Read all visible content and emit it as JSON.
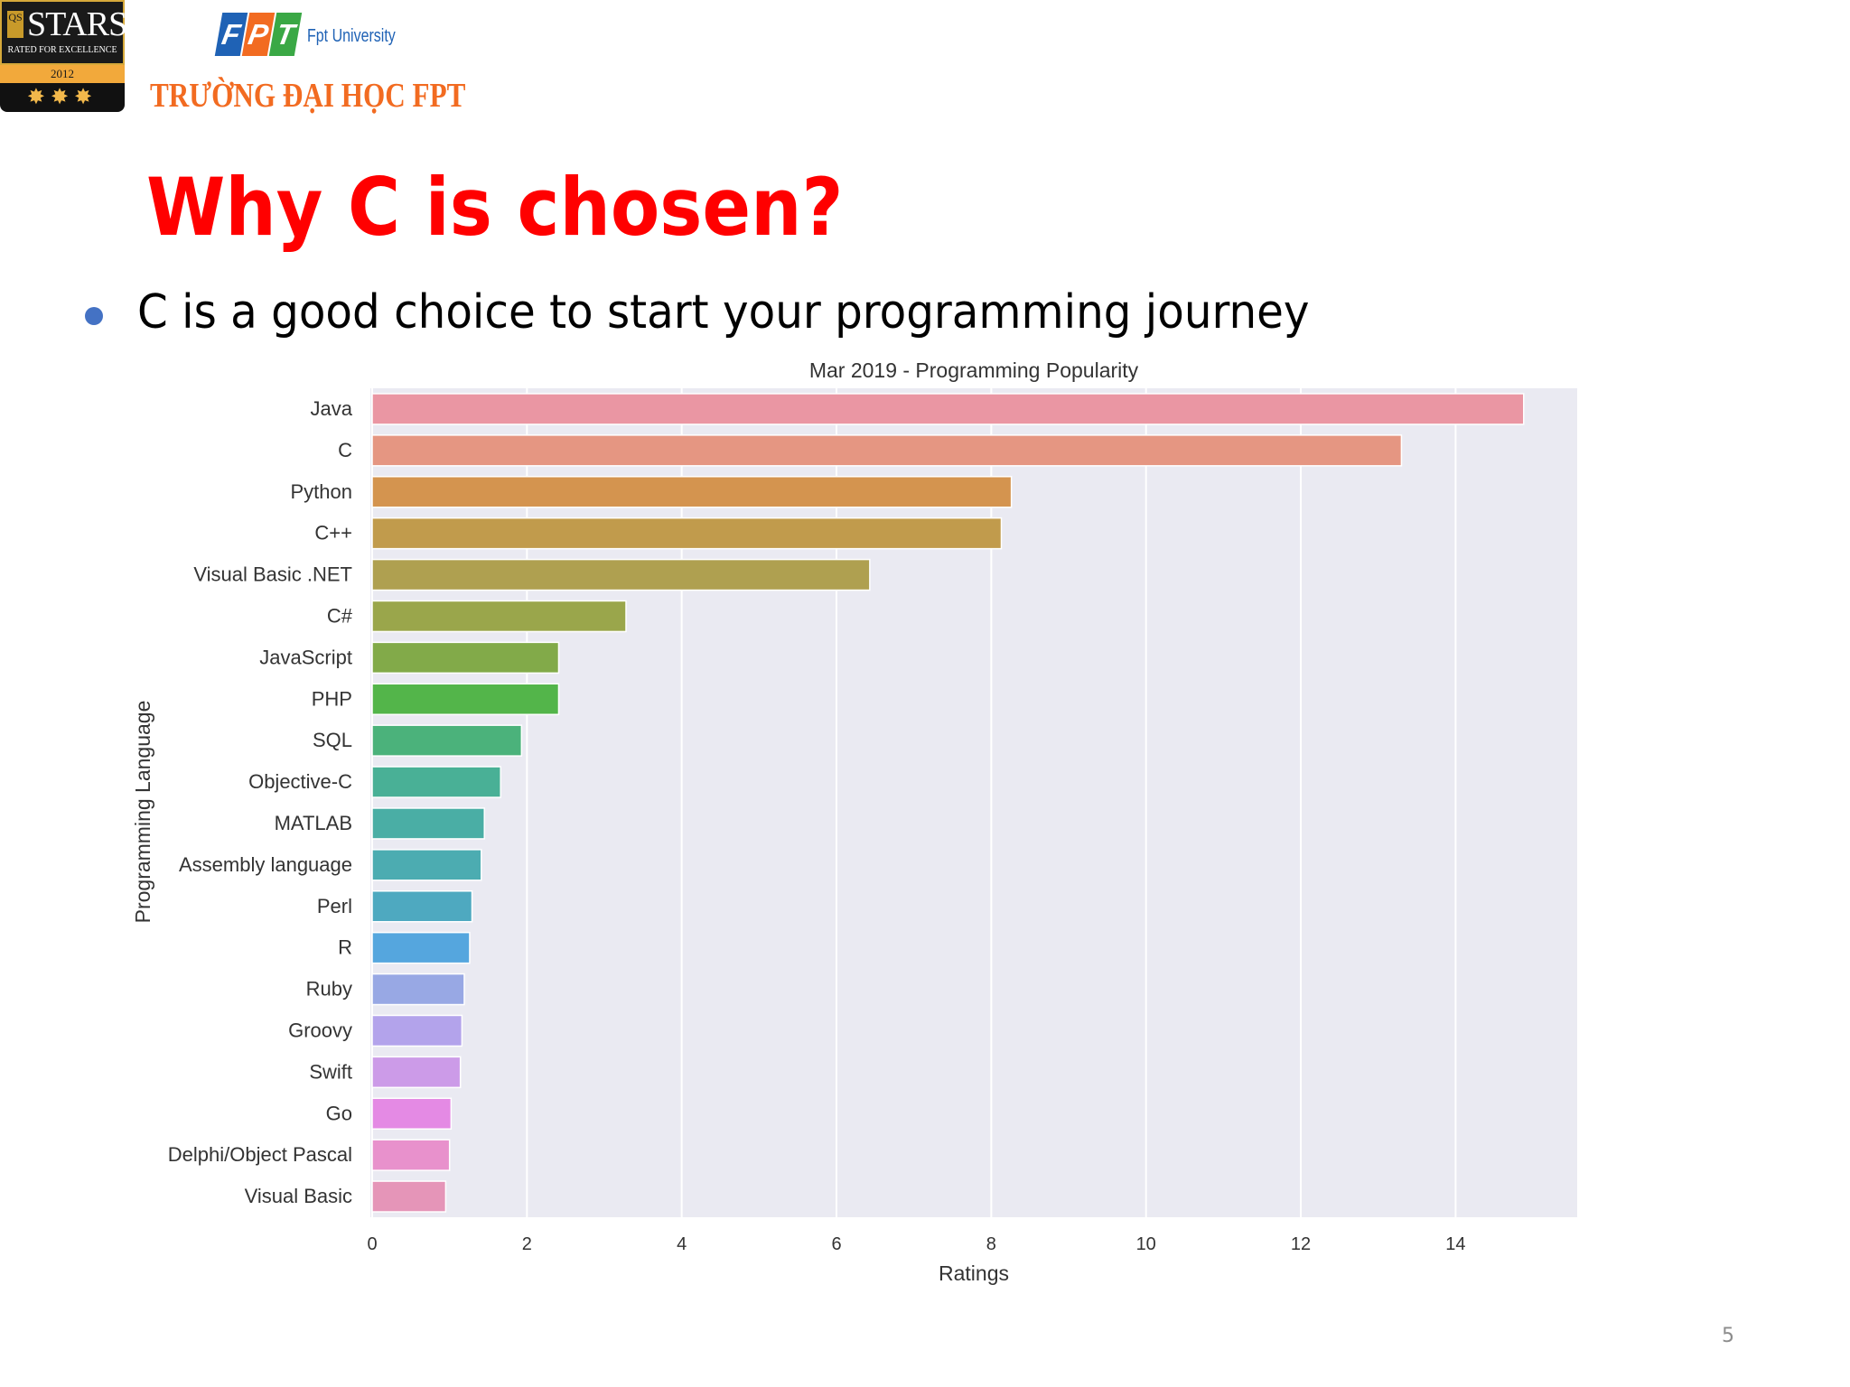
{
  "header": {
    "qs_badge": {
      "box_text": "QS",
      "stars_text": "STARS",
      "rated_text": "RATED FOR EXCELLENCE",
      "year": "2012",
      "rating_glyphs": "✸✸✸"
    },
    "fpt_logo": {
      "letters": [
        "F",
        "P",
        "T"
      ],
      "university_text": "Fpt University",
      "colors": [
        "#1f62b5",
        "#f26b21",
        "#3aa845"
      ]
    },
    "school_name": "TRƯỜNG ĐẠI HỌC FPT"
  },
  "slide": {
    "title": "Why C is chosen?",
    "bullet": "C is a good choice to start your programming journey",
    "page_number": "5",
    "title_color": "#ff0000",
    "bullet_color": "#4472c4"
  },
  "chart_data": {
    "type": "bar",
    "orientation": "horizontal",
    "title": "Mar 2019 - Programming Popularity",
    "xlabel": "Ratings",
    "ylabel": "Programming Language",
    "xlim": [
      0,
      15.6
    ],
    "xticks": [
      0,
      2,
      4,
      6,
      8,
      10,
      12,
      14
    ],
    "grid": true,
    "legend": "none",
    "categories": [
      "Java",
      "C",
      "Python",
      "C++",
      "Visual Basic .NET",
      "C#",
      "JavaScript",
      "PHP",
      "SQL",
      "Objective-C",
      "MATLAB",
      "Assembly language",
      "Perl",
      "R",
      "Ruby",
      "Groovy",
      "Swift",
      "Go",
      "Delphi/Object Pascal",
      "Visual Basic"
    ],
    "values": [
      14.88,
      13.3,
      8.26,
      8.13,
      6.43,
      3.28,
      2.41,
      2.41,
      1.93,
      1.66,
      1.45,
      1.41,
      1.29,
      1.26,
      1.19,
      1.16,
      1.14,
      1.02,
      1.0,
      0.95
    ],
    "colors": [
      "#ea96a3",
      "#e59682",
      "#d4944f",
      "#c19b4c",
      "#afa050",
      "#9aa64b",
      "#82aa49",
      "#53b54a",
      "#4bb27b",
      "#49b096",
      "#4aaea5",
      "#4cacb1",
      "#4ea9c0",
      "#55a6de",
      "#98a8e4",
      "#b3a3eb",
      "#cc9be8",
      "#e48ae4",
      "#e891cc",
      "#e595b8"
    ],
    "background": "#eaeaf2"
  }
}
